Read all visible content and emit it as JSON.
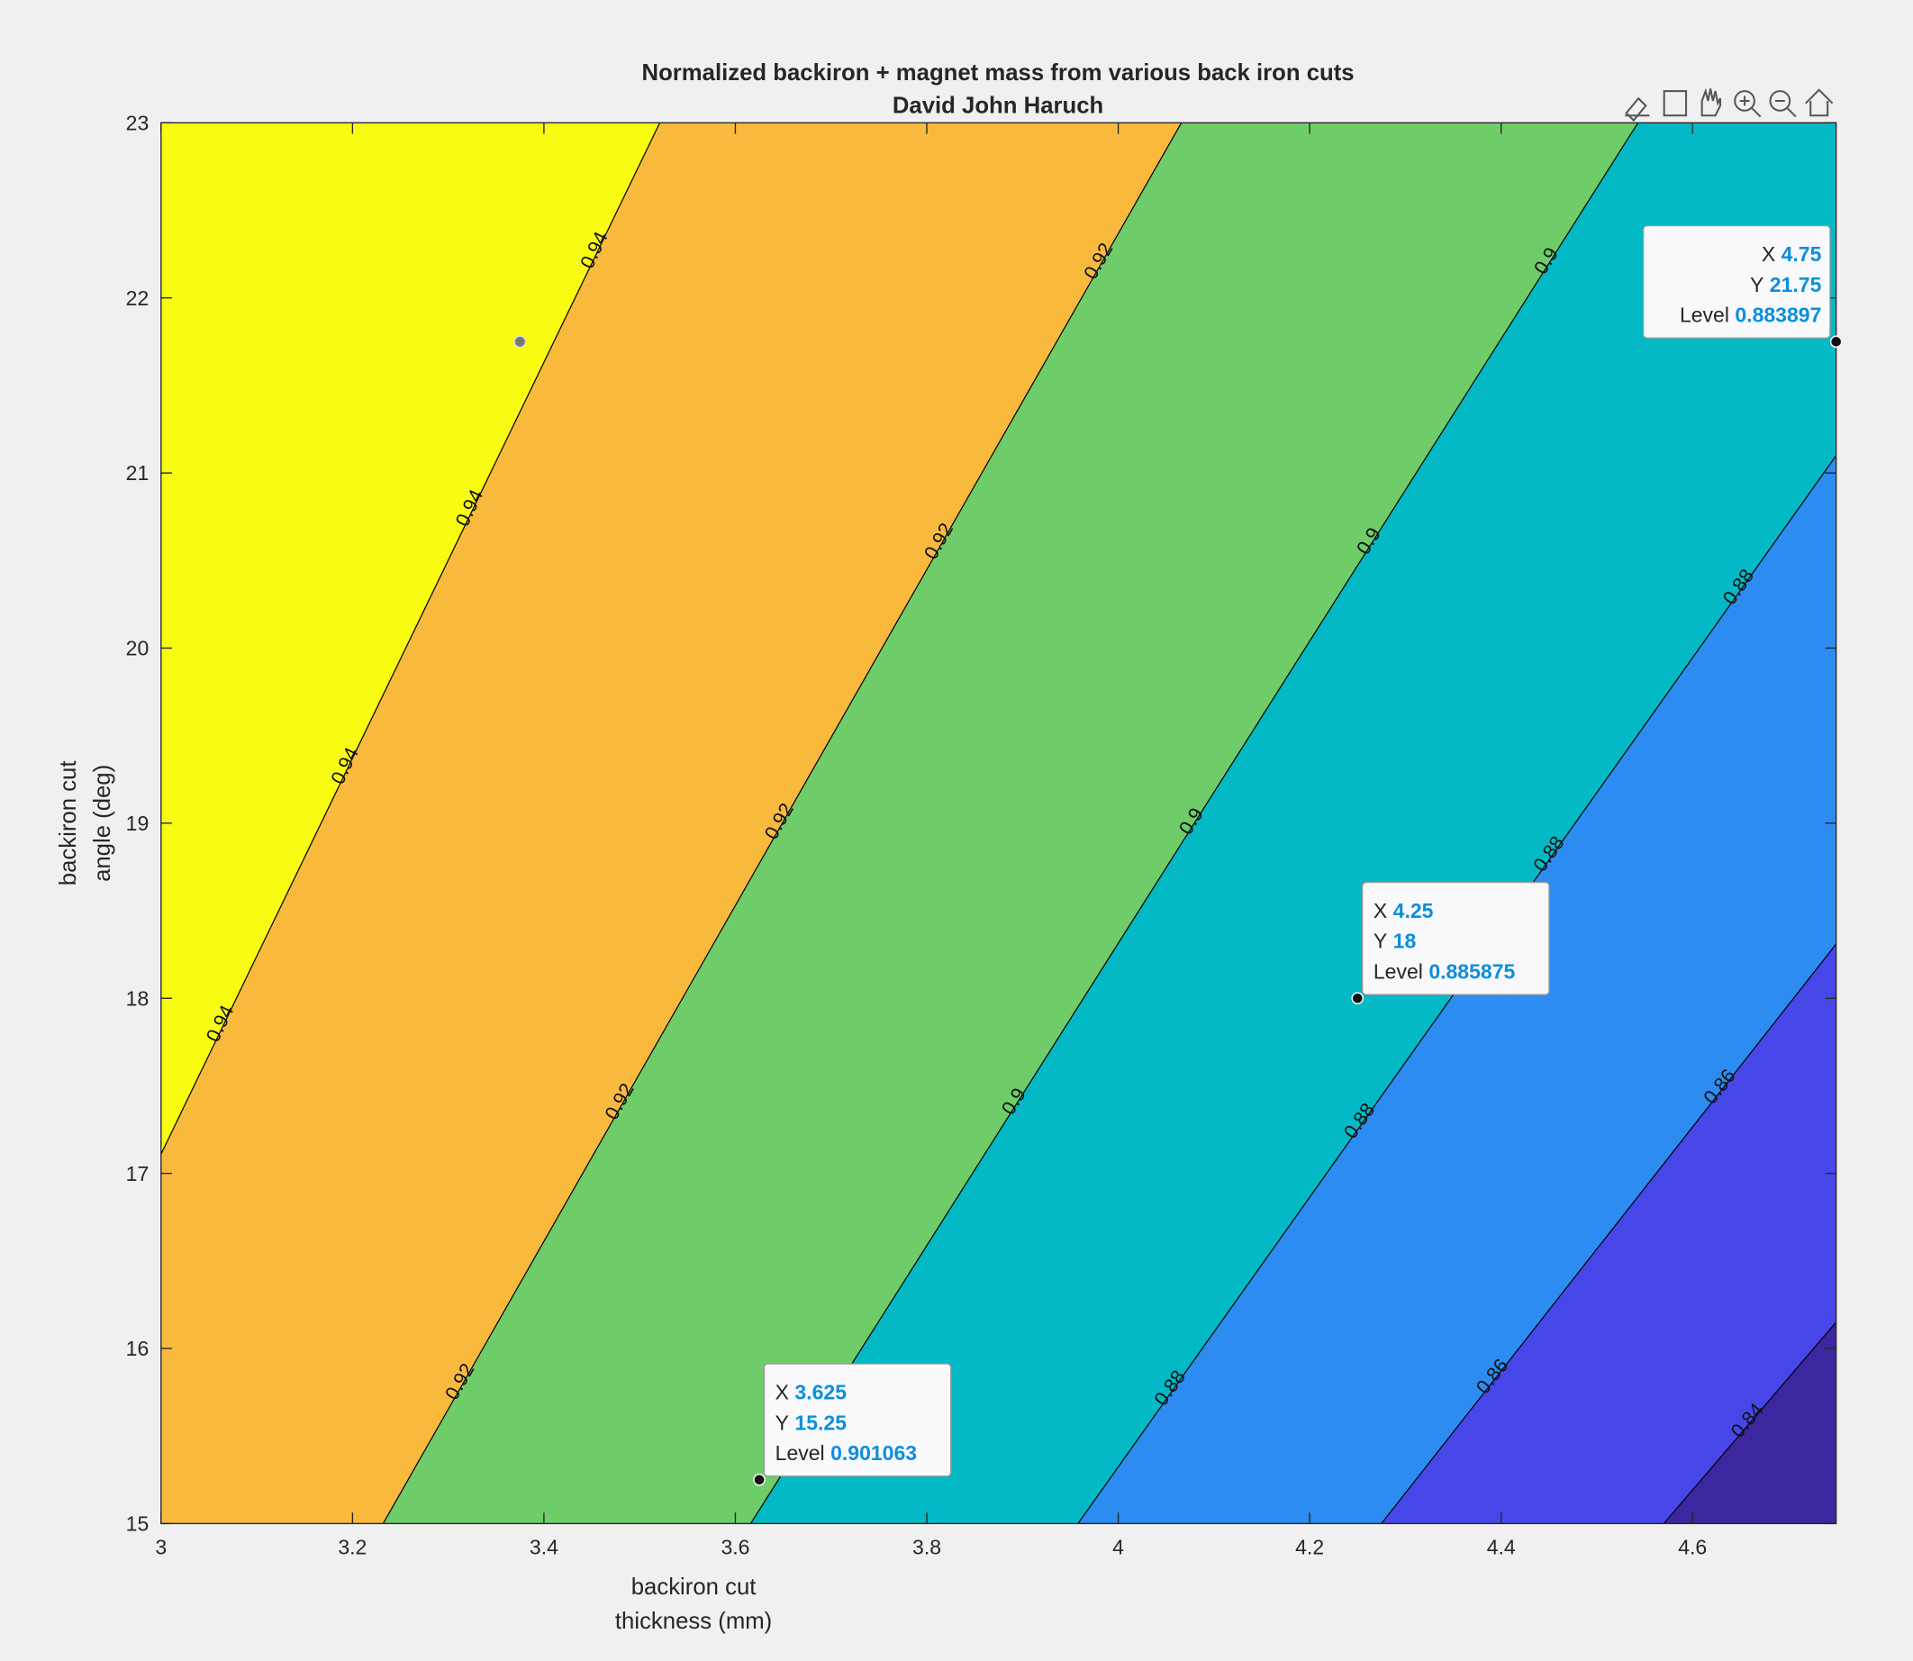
{
  "chart_data": {
    "type": "contourf",
    "title": "Normalized backiron + magnet mass from various back iron cuts",
    "subtitle": "David John Haruch",
    "xlabel": [
      "backiron cut",
      "thickness (mm)"
    ],
    "ylabel": [
      "backiron cut",
      "angle (deg)"
    ],
    "xlim": [
      3,
      4.75
    ],
    "ylim": [
      15,
      23
    ],
    "xticks": [
      3,
      3.2,
      3.4,
      3.6,
      3.8,
      4,
      4.2,
      4.4,
      4.6
    ],
    "yticks": [
      15,
      16,
      17,
      18,
      19,
      20,
      21,
      22,
      23
    ],
    "contours": [
      {
        "level": 0.84,
        "x": [
          4.57,
          4.75
        ],
        "y": [
          15,
          16.15
        ]
      },
      {
        "level": 0.86,
        "x": [
          4.275,
          4.75
        ],
        "y": [
          15,
          18.31
        ]
      },
      {
        "level": 0.88,
        "x": [
          3.958,
          4.75
        ],
        "y": [
          15,
          21.1
        ]
      },
      {
        "level": 0.9,
        "x": [
          3.616,
          4.543
        ],
        "y": [
          15,
          23
        ]
      },
      {
        "level": 0.92,
        "x": [
          3.232,
          4.066
        ],
        "y": [
          15,
          23
        ]
      },
      {
        "level": 0.94,
        "x": [
          3,
          3.521
        ],
        "y": [
          17.11,
          23
        ]
      }
    ],
    "band_colors": [
      "#3d27a0",
      "#4747e9",
      "#2d8cf2",
      "#03b9c5",
      "#6ecd69",
      "#f9b93d",
      "#f8fb12"
    ],
    "datatip_labels": [
      "X",
      "Y",
      "Level"
    ],
    "datatips": [
      {
        "x": 3.625,
        "y": 15.25,
        "level": 0.901063
      },
      {
        "x": 4.25,
        "y": 18,
        "level": 0.885875
      },
      {
        "x": 4.75,
        "y": 21.75,
        "level": 0.883897
      }
    ],
    "markers": [
      {
        "x": 3.375,
        "y": 21.75
      }
    ]
  }
}
